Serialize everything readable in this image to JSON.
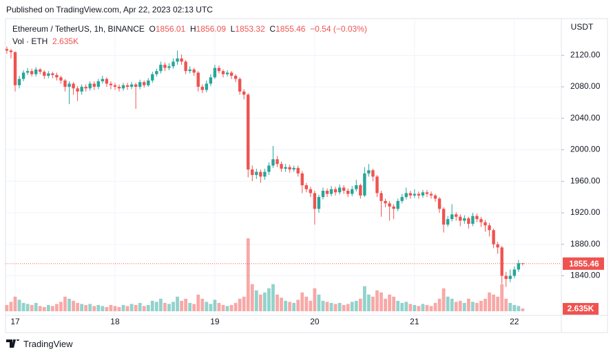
{
  "chart_data": {
    "type": "candlestick",
    "published": "Published on TradingView.com, Apr 22, 2023 02:13 UTC",
    "title": "Ethereum / TetherUS, 1h, BINANCE",
    "ohlc_letters": [
      "O",
      "H",
      "L",
      "C"
    ],
    "change": "−0.54 (−0.03%)",
    "unit": "USDT",
    "brand": "TradingView",
    "up_color": "#26a69a",
    "down_color": "#ef5350",
    "grid": true,
    "ylim": [
      1788,
      2164
    ],
    "yticks": [
      {
        "value": 1840,
        "label": "1840.00"
      },
      {
        "value": 1880,
        "label": "1880.00"
      },
      {
        "value": 1920,
        "label": "1920.00"
      },
      {
        "value": 1960,
        "label": "1960.00"
      },
      {
        "value": 2000,
        "label": "2000.00"
      },
      {
        "value": 2040,
        "label": "2040.00"
      },
      {
        "value": 2080,
        "label": "2080.00"
      },
      {
        "value": 2120,
        "label": "2120.00"
      }
    ],
    "xticks": [
      17,
      18,
      19,
      20,
      21,
      22
    ],
    "open": [
      2128,
      2126,
      2124,
      2082,
      2090,
      2098,
      2100,
      2096,
      2102,
      2099,
      2094,
      2097,
      2095,
      2092,
      2088,
      2080,
      2084,
      2078,
      2074,
      2080,
      2078,
      2084,
      2080,
      2087,
      2090,
      2084,
      2082,
      2080,
      2078,
      2082,
      2080,
      2083,
      2080,
      2086,
      2082,
      2088,
      2096,
      2100,
      2108,
      2104,
      2106,
      2112,
      2116,
      2112,
      2100,
      2102,
      2098,
      2080,
      2076,
      2084,
      2092,
      2104,
      2100,
      2096,
      2098,
      2094,
      2090,
      2074,
      2070,
      1975,
      1968,
      1972,
      1966,
      1972,
      1980,
      1988,
      1982,
      1976,
      1978,
      1975,
      1977,
      1970,
      1955,
      1950,
      1945,
      1925,
      1940,
      1948,
      1944,
      1950,
      1946,
      1952,
      1948,
      1944,
      1950,
      1955,
      1942,
      1970,
      1974,
      1966,
      1945,
      1935,
      1932,
      1928,
      1925,
      1935,
      1940,
      1945,
      1942,
      1944,
      1942,
      1946,
      1944,
      1942,
      1938,
      1925,
      1905,
      1912,
      1918,
      1915,
      1910,
      1913,
      1906,
      1916,
      1912,
      1908,
      1904,
      1898,
      1880,
      1876,
      1840,
      1836,
      1840,
      1848,
      1856.01
    ],
    "high": [
      2131,
      2128,
      2125,
      2094,
      2101,
      2104,
      2103,
      2105,
      2104,
      2101,
      2100,
      2099,
      2098,
      2094,
      2090,
      2087,
      2086,
      2081,
      2083,
      2083,
      2087,
      2087,
      2090,
      2094,
      2092,
      2087,
      2085,
      2083,
      2085,
      2085,
      2086,
      2085,
      2089,
      2088,
      2091,
      2099,
      2103,
      2112,
      2111,
      2110,
      2116,
      2126,
      2121,
      2114,
      2106,
      2104,
      2100,
      2083,
      2088,
      2096,
      2108,
      2107,
      2102,
      2101,
      2100,
      2096,
      2092,
      2077,
      2072,
      1980,
      1976,
      1975,
      1976,
      1984,
      2005,
      1992,
      1985,
      1982,
      1981,
      1980,
      1980,
      1973,
      1958,
      1953,
      1948,
      1943,
      1952,
      1951,
      1954,
      1953,
      1956,
      1955,
      1951,
      1954,
      1962,
      1957,
      1978,
      1982,
      1976,
      1968,
      1948,
      1938,
      1935,
      1931,
      1938,
      1944,
      1952,
      1948,
      1950,
      1947,
      1949,
      1949,
      1947,
      1944,
      1940,
      1927,
      1916,
      1931,
      1921,
      1918,
      1917,
      1915,
      1920,
      1919,
      1915,
      1911,
      1907,
      1900,
      1883,
      1878,
      1845,
      1848,
      1852,
      1860,
      1856.09
    ],
    "low": [
      2122,
      2116,
      2074,
      2078,
      2087,
      2095,
      2093,
      2093,
      2096,
      2090,
      2091,
      2091,
      2088,
      2084,
      2074,
      2058,
      2070,
      2062,
      2070,
      2074,
      2075,
      2076,
      2077,
      2084,
      2080,
      2077,
      2076,
      2074,
      2075,
      2076,
      2077,
      2052,
      2077,
      2079,
      2080,
      2085,
      2093,
      2097,
      2100,
      2101,
      2103,
      2108,
      2108,
      2096,
      2097,
      2094,
      2074,
      2072,
      2073,
      2081,
      2090,
      2097,
      2092,
      2093,
      2090,
      2086,
      2070,
      2064,
      1965,
      1960,
      1963,
      1958,
      1962,
      1968,
      1977,
      1978,
      1972,
      1972,
      1971,
      1972,
      1966,
      1945,
      1946,
      1940,
      1905,
      1920,
      1937,
      1940,
      1941,
      1942,
      1943,
      1944,
      1940,
      1941,
      1947,
      1938,
      1940,
      1966,
      1960,
      1940,
      1915,
      1927,
      1910,
      1912,
      1922,
      1932,
      1937,
      1938,
      1939,
      1938,
      1939,
      1940,
      1938,
      1934,
      1920,
      1895,
      1902,
      1909,
      1910,
      1903,
      1906,
      1900,
      1903,
      1908,
      1902,
      1896,
      1890,
      1875,
      1868,
      1830,
      1826,
      1832,
      1837,
      1845,
      1853.32
    ],
    "close": [
      2126,
      2124,
      2082,
      2090,
      2098,
      2100,
      2096,
      2102,
      2099,
      2094,
      2097,
      2095,
      2092,
      2088,
      2080,
      2084,
      2078,
      2074,
      2080,
      2078,
      2084,
      2080,
      2087,
      2090,
      2084,
      2082,
      2080,
      2078,
      2082,
      2080,
      2083,
      2080,
      2086,
      2082,
      2088,
      2096,
      2100,
      2108,
      2104,
      2106,
      2112,
      2116,
      2112,
      2100,
      2102,
      2098,
      2080,
      2076,
      2084,
      2092,
      2104,
      2100,
      2096,
      2098,
      2094,
      2090,
      2074,
      2070,
      1975,
      1968,
      1972,
      1966,
      1972,
      1980,
      1988,
      1982,
      1976,
      1978,
      1975,
      1977,
      1970,
      1955,
      1950,
      1945,
      1925,
      1940,
      1948,
      1944,
      1950,
      1946,
      1952,
      1948,
      1944,
      1950,
      1955,
      1942,
      1970,
      1974,
      1966,
      1945,
      1935,
      1932,
      1928,
      1925,
      1935,
      1940,
      1945,
      1942,
      1944,
      1942,
      1946,
      1944,
      1942,
      1938,
      1925,
      1905,
      1912,
      1918,
      1915,
      1910,
      1913,
      1906,
      1916,
      1912,
      1908,
      1904,
      1898,
      1880,
      1876,
      1840,
      1836,
      1840,
      1848,
      1856,
      1855.46
    ],
    "volume": {
      "name": "Vol · ETH",
      "last_label": "2.635K",
      "values": [
        6000,
        9000,
        14000,
        11000,
        8000,
        7000,
        6000,
        8000,
        5000,
        4000,
        6000,
        5000,
        7000,
        9000,
        14000,
        12000,
        10000,
        8000,
        7000,
        6000,
        7000,
        5000,
        6000,
        5000,
        4000,
        6000,
        5000,
        4000,
        6000,
        5000,
        7000,
        6000,
        8000,
        5000,
        6000,
        10000,
        9000,
        12000,
        8000,
        7000,
        9000,
        14000,
        10000,
        12000,
        8000,
        7000,
        16000,
        12000,
        9000,
        7000,
        11000,
        8000,
        6000,
        5000,
        6000,
        8000,
        12000,
        14000,
        70000,
        26000,
        20000,
        16000,
        18000,
        22000,
        26000,
        16000,
        13000,
        10000,
        9000,
        8000,
        11000,
        18000,
        14000,
        10000,
        22000,
        16000,
        10000,
        9000,
        8000,
        7000,
        8000,
        6000,
        7000,
        9000,
        10000,
        12000,
        24000,
        16000,
        14000,
        20000,
        18000,
        12000,
        16000,
        14000,
        10000,
        8000,
        9000,
        7000,
        6000,
        5000,
        7000,
        6000,
        5000,
        8000,
        12000,
        22000,
        14000,
        12000,
        9000,
        10000,
        8000,
        12000,
        9000,
        8000,
        10000,
        12000,
        18000,
        16000,
        14000,
        26000,
        12000,
        8000,
        6000,
        5000,
        2635
      ]
    }
  }
}
